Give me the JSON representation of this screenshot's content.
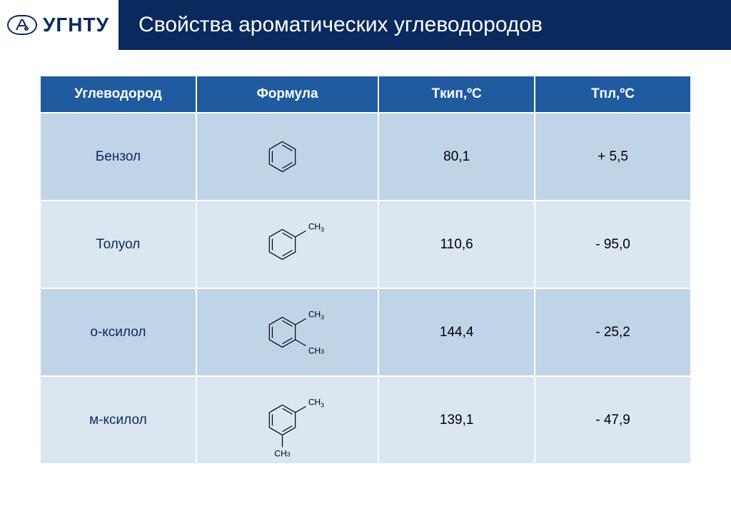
{
  "header": {
    "logo_text": "УГНТУ",
    "title": "Свойства ароматических углеводородов"
  },
  "table": {
    "background_color": "#ffffff",
    "header_bg": "#1f5b9e",
    "header_text_color": "#ffffff",
    "row_a_bg": "#c0d4e8",
    "row_b_bg": "#dbe6f1",
    "font_size": 19,
    "columns": [
      "Углеводород",
      "Формула",
      "Tкип,ºС",
      "Тпл,ºС"
    ],
    "column_widths_pct": [
      24,
      28,
      24,
      24
    ],
    "rows": [
      {
        "name": "Бензол",
        "structure": "benzene",
        "substituents": [],
        "tkip": "80,1",
        "tpl": "+ 5,5"
      },
      {
        "name": "Толуол",
        "structure": "benzene",
        "substituents": [
          {
            "pos": 1,
            "label": "CH3"
          }
        ],
        "tkip": "110,6",
        "tpl": "- 95,0"
      },
      {
        "name": "о-ксилол",
        "structure": "benzene",
        "substituents": [
          {
            "pos": 1,
            "label": "CH3"
          },
          {
            "pos": 2,
            "label": "CH3"
          }
        ],
        "tkip": "144,4",
        "tpl": "- 25,2"
      },
      {
        "name": "м-ксилол",
        "structure": "benzene",
        "substituents": [
          {
            "pos": 1,
            "label": "CH3"
          },
          {
            "pos": 3,
            "label": "CH3"
          }
        ],
        "tkip": "139,1",
        "tpl": "- 47,9"
      }
    ],
    "structure_style": {
      "stroke_color": "#000000",
      "stroke_width": 1.6,
      "label_font_size": 16,
      "label_color": "#000000",
      "hex_radius": 28
    }
  }
}
